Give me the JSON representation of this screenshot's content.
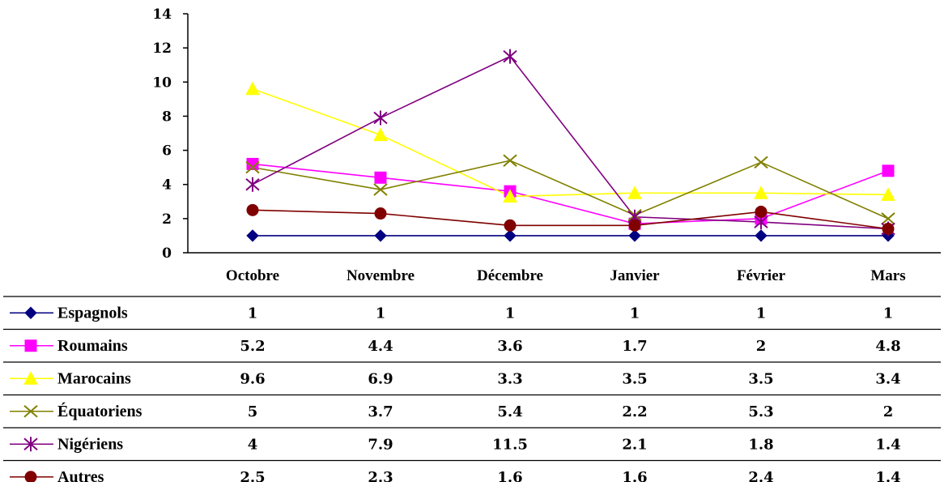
{
  "chart_data": {
    "type": "line",
    "categories": [
      "Octobre",
      "Novembre",
      "Décembre",
      "Janvier",
      "Février",
      "Mars"
    ],
    "ylim": [
      0,
      14
    ],
    "yticks": [
      "0",
      "2",
      "4",
      "6",
      "8",
      "10",
      "12",
      "14"
    ],
    "grid": false,
    "legend": "data-table-below",
    "series": [
      {
        "name": "Espagnols",
        "color": "#000080",
        "marker": "diamond",
        "values": [
          1,
          1,
          1,
          1,
          1,
          1
        ],
        "labels": [
          "1",
          "1",
          "1",
          "1",
          "1",
          "1"
        ]
      },
      {
        "name": "Roumains",
        "color": "#FF00FF",
        "marker": "square",
        "values": [
          5.2,
          4.4,
          3.6,
          1.7,
          2,
          4.8
        ],
        "labels": [
          "5.2",
          "4.4",
          "3.6",
          "1.7",
          "2",
          "4.8"
        ]
      },
      {
        "name": "Marocains",
        "color": "#FFFF00",
        "marker": "triangle",
        "values": [
          9.6,
          6.9,
          3.3,
          3.5,
          3.5,
          3.4
        ],
        "labels": [
          "9.6",
          "6.9",
          "3.3",
          "3.5",
          "3.5",
          "3.4"
        ]
      },
      {
        "name": "Équatoriens",
        "color": "#808000",
        "marker": "x",
        "values": [
          5,
          3.7,
          5.4,
          2.2,
          5.3,
          2
        ],
        "labels": [
          "5",
          "3.7",
          "5.4",
          "2.2",
          "5.3",
          "2"
        ]
      },
      {
        "name": "Nigériens",
        "color": "#800080",
        "marker": "star",
        "values": [
          4,
          7.9,
          11.5,
          2.1,
          1.8,
          1.4
        ],
        "labels": [
          "4",
          "7.9",
          "11.5",
          "2.1",
          "1.8",
          "1.4"
        ]
      },
      {
        "name": "Autres",
        "color": "#800000",
        "marker": "circle",
        "values": [
          2.5,
          2.3,
          1.6,
          1.6,
          2.4,
          1.4
        ],
        "labels": [
          "2.5",
          "2.3",
          "1.6",
          "1.6",
          "2.4",
          "1.4"
        ]
      }
    ]
  }
}
